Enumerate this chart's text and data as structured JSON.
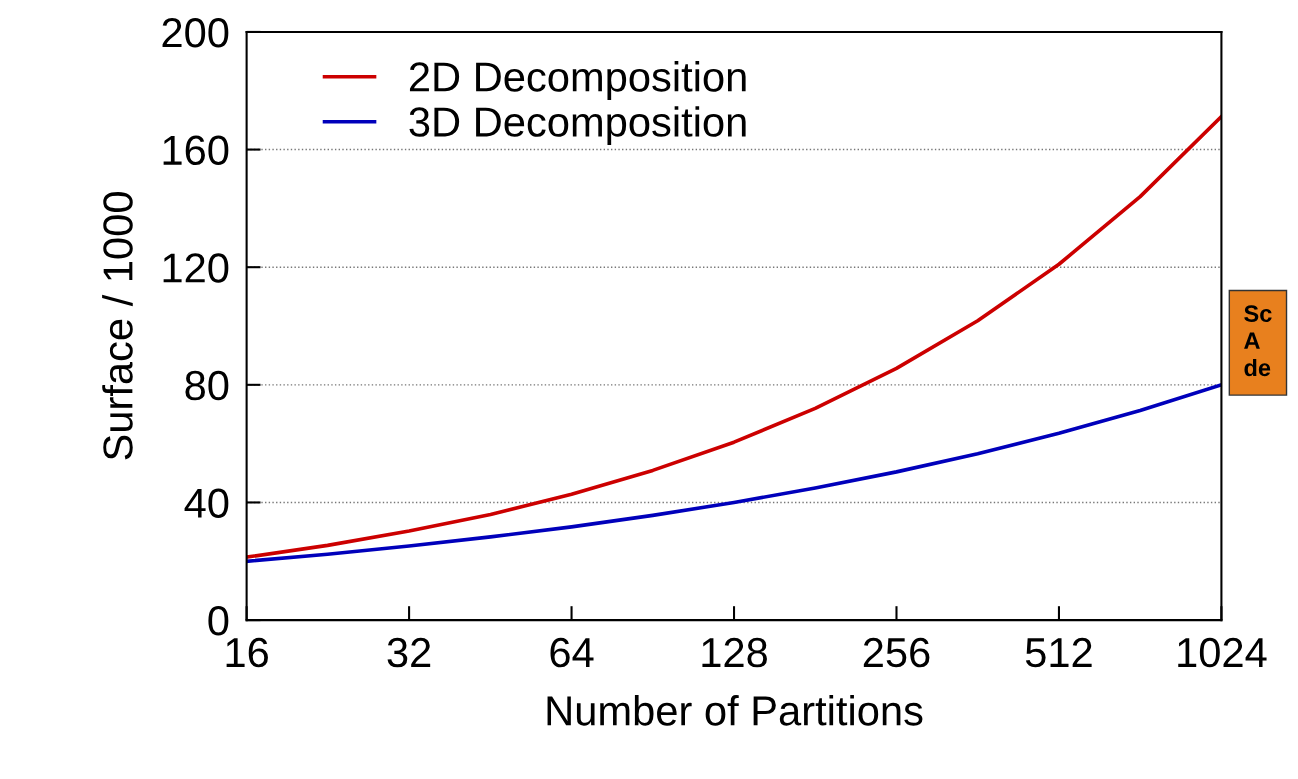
{
  "chart_data": {
    "type": "line",
    "xlabel": "Number of Partitions",
    "ylabel": "Surface / 1000",
    "x": [
      16,
      22.6,
      32,
      45.3,
      64,
      90.5,
      128,
      181,
      256,
      362,
      512,
      724,
      1024
    ],
    "series": [
      {
        "name": "2D Decomposition",
        "color": "#cc0000",
        "values": [
          21.4,
          25.4,
          30.3,
          35.9,
          42.8,
          50.9,
          60.5,
          72,
          85.6,
          101.8,
          121,
          144,
          171.2
        ]
      },
      {
        "name": "3D Decomposition",
        "color": "#0000bb",
        "values": [
          20,
          22.4,
          25.2,
          28.3,
          31.7,
          35.6,
          40,
          44.9,
          50.4,
          56.6,
          63.5,
          71.3,
          80
        ]
      }
    ],
    "log": "x",
    "xlim": [
      16,
      1024
    ],
    "xticks": [
      16,
      32,
      64,
      128,
      256,
      512,
      1024
    ],
    "ylim": [
      0,
      200
    ],
    "yticks": [
      0,
      40,
      80,
      120,
      160,
      200
    ],
    "grid": "y",
    "legend": "top left",
    "marker": "none",
    "line_style": "solid",
    "annotations": [
      "Sc\nA\nde"
    ]
  }
}
